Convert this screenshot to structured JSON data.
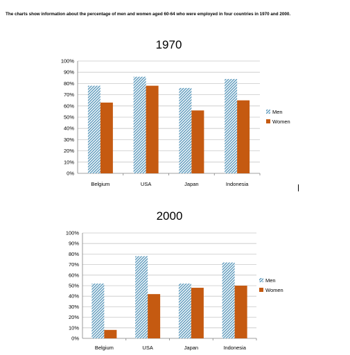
{
  "caption": "The charts show information about the percentage of men and women aged 60-64 who were employed in four countries in 1970 and 2000.",
  "colors": {
    "men": "#5f9bbd",
    "women": "#c55a11",
    "grid": "#c8c8c8",
    "axis": "#808080"
  },
  "chart_data": [
    {
      "type": "bar",
      "title": "1970",
      "categories": [
        "Belgium",
        "USA",
        "Japan",
        "Indonesia"
      ],
      "series": [
        {
          "name": "Men",
          "values": [
            78,
            86,
            76,
            84
          ],
          "pattern": "diagonal-hatch"
        },
        {
          "name": "Women",
          "values": [
            63,
            78,
            56,
            65
          ]
        }
      ],
      "ylim": [
        0,
        100
      ],
      "yticks": [
        "0%",
        "10%",
        "20%",
        "30%",
        "40%",
        "50%",
        "60%",
        "70%",
        "80%",
        "90%",
        "100%"
      ],
      "grid": true,
      "legend": "right"
    },
    {
      "type": "bar",
      "title": "2000",
      "categories": [
        "Belgium",
        "USA",
        "Japan",
        "Indonesia"
      ],
      "series": [
        {
          "name": "Men",
          "values": [
            52,
            78,
            52,
            72
          ],
          "pattern": "diagonal-hatch"
        },
        {
          "name": "Women",
          "values": [
            8,
            42,
            48,
            50
          ]
        }
      ],
      "ylim": [
        0,
        100
      ],
      "yticks": [
        "0%",
        "10%",
        "20%",
        "30%",
        "40%",
        "50%",
        "60%",
        "70%",
        "80%",
        "90%",
        "100%"
      ],
      "grid": true,
      "legend": "right"
    }
  ]
}
